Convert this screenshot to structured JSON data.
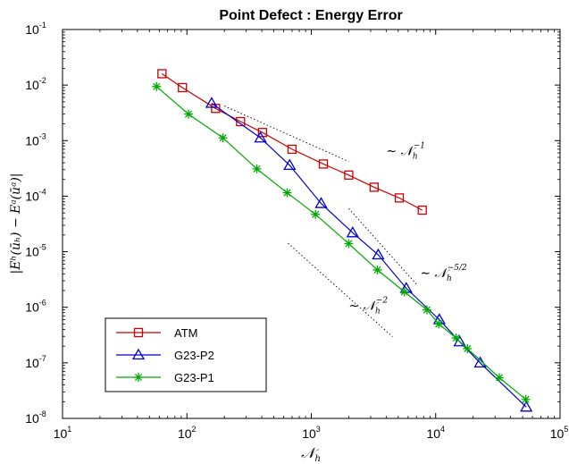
{
  "chart_data": {
    "type": "line",
    "title": "Point Defect : Energy Error",
    "xlabel": "𝒩",
    "xlabel_sub": "h",
    "ylabel": "|Eʰ(ūₕ) − Eᵃ(ūᵃ)|",
    "xscale": "log",
    "yscale": "log",
    "xlim": [
      10,
      100000
    ],
    "ylim": [
      1e-08,
      0.1
    ],
    "x_ticks": [
      {
        "value": 10,
        "base": "10",
        "exp": "1"
      },
      {
        "value": 100,
        "base": "10",
        "exp": "2"
      },
      {
        "value": 1000,
        "base": "10",
        "exp": "3"
      },
      {
        "value": 10000,
        "base": "10",
        "exp": "4"
      },
      {
        "value": 100000,
        "base": "10",
        "exp": "5"
      }
    ],
    "y_ticks": [
      {
        "value": 1e-08,
        "base": "10",
        "exp": "-8"
      },
      {
        "value": 1e-07,
        "base": "10",
        "exp": "-7"
      },
      {
        "value": 1e-06,
        "base": "10",
        "exp": "-6"
      },
      {
        "value": 1e-05,
        "base": "10",
        "exp": "-5"
      },
      {
        "value": 0.0001,
        "base": "10",
        "exp": "-4"
      },
      {
        "value": 0.001,
        "base": "10",
        "exp": "-3"
      },
      {
        "value": 0.01,
        "base": "10",
        "exp": "-2"
      },
      {
        "value": 0.1,
        "base": "10",
        "exp": "-1"
      }
    ],
    "grid": false,
    "legend_position": "bottom-left",
    "series": [
      {
        "name": "ATM",
        "color": "#cc0000",
        "marker": "square",
        "x": [
          63,
          92,
          170,
          270,
          405,
          700,
          1250,
          2000,
          3200,
          5100,
          7800
        ],
        "y": [
          0.016,
          0.009,
          0.0038,
          0.0022,
          0.0014,
          0.0007,
          0.00038,
          0.00024,
          0.000145,
          9.3e-05,
          5.6e-05
        ]
      },
      {
        "name": "G23-P2",
        "color": "#0000cc",
        "marker": "triangle",
        "x": [
          158,
          390,
          670,
          1200,
          2150,
          3450,
          5800,
          10700,
          15600,
          22800,
          53500
        ],
        "y": [
          0.0047,
          0.00112,
          0.00036,
          7.4e-05,
          2.2e-05,
          8.8e-06,
          2.2e-06,
          6e-07,
          2.4e-07,
          1e-07,
          1.6e-08
        ]
      },
      {
        "name": "G23-P1",
        "color": "#00aa00",
        "marker": "asterisk",
        "x": [
          57,
          103,
          195,
          365,
          640,
          1080,
          2000,
          3400,
          5600,
          8500,
          10600,
          14600,
          18000,
          32500,
          53000
        ],
        "y": [
          0.0094,
          0.003,
          0.00112,
          0.00031,
          0.000115,
          4.7e-05,
          1.4e-05,
          4.7e-06,
          1.9e-06,
          9e-07,
          5e-07,
          2.8e-07,
          1.8e-07,
          5.4e-08,
          2.2e-08
        ]
      }
    ],
    "reference_lines": [
      {
        "x": [
          200,
          2000
        ],
        "y": [
          0.0042,
          0.00042
        ],
        "label_base": "∼ 𝒩",
        "label_sub": "h",
        "label_exp": "−1",
        "label_pos": {
          "x": 4000,
          "y": 0.00055
        }
      },
      {
        "x": [
          2000,
          7000
        ],
        "y": [
          6e-05,
          2.6e-06
        ],
        "label_base": "∼ 𝒩",
        "label_sub": "h",
        "label_exp": "−5/2",
        "label_pos": {
          "x": 7500,
          "y": 3.5e-06
        }
      },
      {
        "x": [
          650,
          4500
        ],
        "y": [
          1.42e-05,
          2.96e-07
        ],
        "label_base": "∼ 𝒩",
        "label_sub": "h",
        "label_exp": "−2",
        "label_pos": {
          "x": 2000,
          "y": 9e-07
        }
      }
    ]
  }
}
